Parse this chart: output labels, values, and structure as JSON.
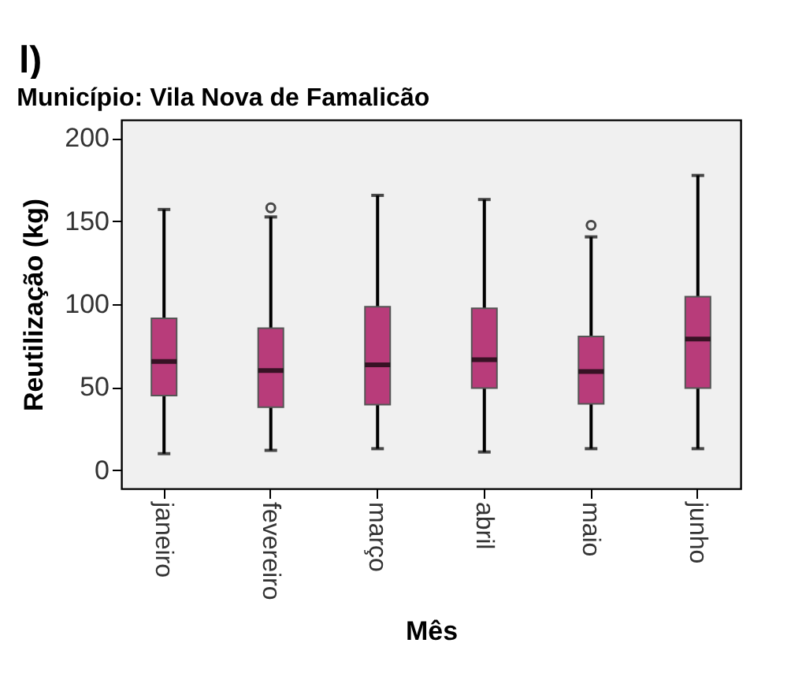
{
  "chart_data": {
    "type": "box",
    "title": "Município: Vila Nova de Famalicão",
    "xlabel": "Mês",
    "ylabel": "Reutilização (kg)",
    "annotations": [
      "l)"
    ],
    "categories": [
      "janeiro",
      "fevereiro",
      "março",
      "abril",
      "maio",
      "junho"
    ],
    "ylim": [
      -11,
      211
    ],
    "yticks": [
      0,
      50,
      100,
      150,
      200
    ],
    "grid": false,
    "series": [
      {
        "color": "#b83c7a",
        "boxes": [
          {
            "low": 10,
            "q1": 45,
            "median": 65.5,
            "q3": 91.5,
            "high": 157
          },
          {
            "low": 12,
            "q1": 38,
            "median": 60,
            "q3": 85.5,
            "high": 152.5,
            "outliers": [
              158
            ]
          },
          {
            "low": 13,
            "q1": 39.5,
            "median": 63.5,
            "q3": 98.5,
            "high": 165.5
          },
          {
            "low": 11,
            "q1": 49.5,
            "median": 66.5,
            "q3": 97.5,
            "high": 163
          },
          {
            "low": 13,
            "q1": 40,
            "median": 59.5,
            "q3": 80.5,
            "high": 140.5,
            "outliers": [
              147.5
            ]
          },
          {
            "low": 13,
            "q1": 49.5,
            "median": 79,
            "q3": 104.5,
            "high": 177.5
          }
        ]
      }
    ]
  }
}
